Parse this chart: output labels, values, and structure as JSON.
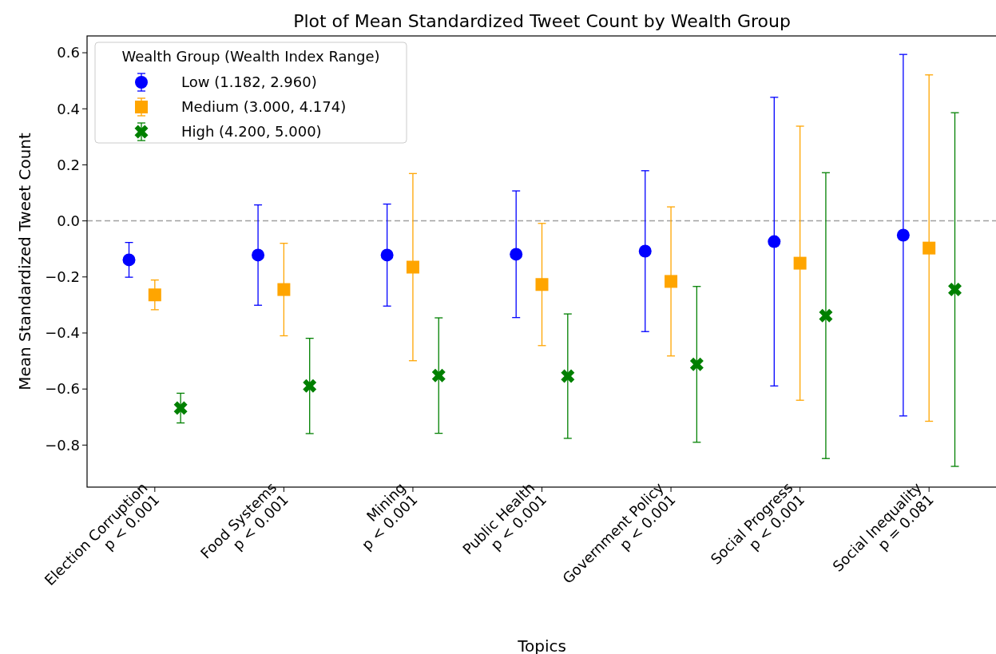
{
  "chart_data": {
    "type": "scatter",
    "title": "Plot of Mean Standardized Tweet Count by Wealth Group",
    "xlabel": "Topics",
    "ylabel": "Mean Standardized Tweet Count",
    "legend_title": "Wealth Group (Wealth Index Range)",
    "legend": "top left",
    "grid": false,
    "categories": [
      "Election Corruption\np < 0.001",
      "Food Systems\np < 0.001",
      "Mining\np < 0.001",
      "Public Health\np < 0.001",
      "Government Policy\np < 0.001",
      "Social Progress\np < 0.001",
      "Social Inequality\np = 0.081"
    ],
    "series": [
      {
        "name": "Low (1.182, 2.960)",
        "color": "#0000ff",
        "marker": "circle",
        "values": [
          -0.139,
          -0.122,
          -0.122,
          -0.119,
          -0.108,
          -0.074,
          -0.051
        ],
        "errors": [
          0.062,
          0.179,
          0.182,
          0.226,
          0.287,
          0.515,
          0.645
        ]
      },
      {
        "name": "Medium (3.000, 4.174)",
        "color": "#ffa500",
        "marker": "square",
        "values": [
          -0.264,
          -0.245,
          -0.165,
          -0.227,
          -0.216,
          -0.151,
          -0.097
        ],
        "errors": [
          0.053,
          0.165,
          0.334,
          0.218,
          0.266,
          0.489,
          0.618
        ]
      },
      {
        "name": "High (4.200, 5.000)",
        "color": "#008000",
        "marker": "cross",
        "values": [
          -0.668,
          -0.589,
          -0.552,
          -0.554,
          -0.512,
          -0.338,
          -0.245
        ],
        "errors": [
          0.053,
          0.17,
          0.206,
          0.222,
          0.278,
          0.51,
          0.631
        ]
      }
    ],
    "ylim": [
      -0.95,
      0.66
    ],
    "yticks": [
      {
        "value": -0.8,
        "label": "−0.8"
      },
      {
        "value": -0.6,
        "label": "−0.6"
      },
      {
        "value": -0.4,
        "label": "−0.4"
      },
      {
        "value": -0.2,
        "label": "−0.2"
      },
      {
        "value": 0,
        "label": "0.0"
      },
      0.2,
      0.4,
      0.6
    ],
    "ref_lines": [
      {
        "axis": "y",
        "value": 0,
        "color": "#a0a0a0",
        "line_style": "dashed"
      }
    ]
  }
}
